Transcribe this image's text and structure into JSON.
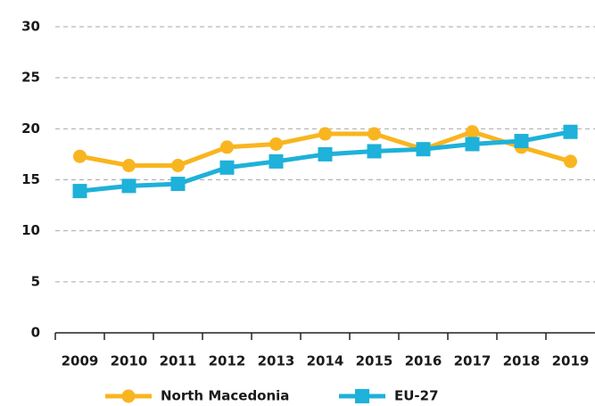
{
  "chart_data": {
    "type": "line",
    "categories": [
      "2009",
      "2010",
      "2011",
      "2012",
      "2013",
      "2014",
      "2015",
      "2016",
      "2017",
      "2018",
      "2019"
    ],
    "series": [
      {
        "name": "North Macedonia",
        "color": "#f9b51f",
        "marker": "circle",
        "values": [
          17.3,
          16.4,
          16.4,
          18.2,
          18.5,
          19.5,
          19.5,
          18.0,
          19.7,
          18.2,
          16.8
        ]
      },
      {
        "name": "EU-27",
        "color": "#1eb1d9",
        "marker": "square",
        "values": [
          13.9,
          14.4,
          14.6,
          16.2,
          16.8,
          17.5,
          17.8,
          18.0,
          18.5,
          18.8,
          19.7
        ]
      }
    ],
    "ylim": [
      0,
      30
    ],
    "yticks": [
      0,
      5,
      10,
      15,
      20,
      25,
      30
    ],
    "grid": true,
    "legend": "bottom"
  }
}
